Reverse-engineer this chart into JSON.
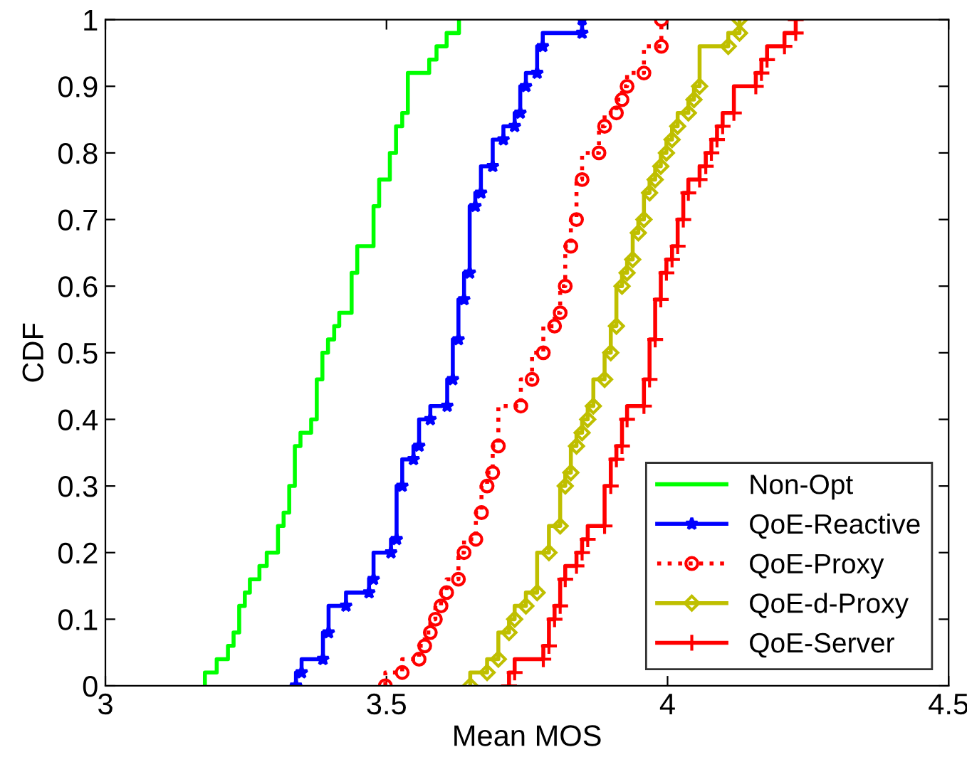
{
  "chart_data": {
    "type": "step",
    "xlabel": "Mean MOS",
    "ylabel": "CDF",
    "xlim": [
      3,
      4.5
    ],
    "ylim": [
      0,
      1
    ],
    "xticks": [
      3,
      3.5,
      4,
      4.5
    ],
    "yticks": [
      0,
      0.1,
      0.2,
      0.3,
      0.4,
      0.5,
      0.6,
      0.7,
      0.8,
      0.9,
      1
    ],
    "grid": false,
    "legend": "bottom right",
    "series": [
      {
        "name": "Non-Opt",
        "color": "#00ff00",
        "marker": "none",
        "line_style": "solid",
        "x": [
          3.177,
          3.198,
          3.218,
          3.228,
          3.238,
          3.248,
          3.257,
          3.274,
          3.287,
          3.307,
          3.317,
          3.327,
          3.337,
          3.347,
          3.366,
          3.376,
          3.386,
          3.396,
          3.407,
          3.416,
          3.438,
          3.448,
          3.477,
          3.487,
          3.506,
          3.517,
          3.528,
          3.538,
          3.576,
          3.589,
          3.607,
          3.629,
          3.629
        ],
        "values": [
          0,
          0.02,
          0.04,
          0.06,
          0.08,
          0.12,
          0.14,
          0.16,
          0.18,
          0.2,
          0.24,
          0.26,
          0.3,
          0.36,
          0.38,
          0.4,
          0.46,
          0.5,
          0.52,
          0.54,
          0.56,
          0.62,
          0.66,
          0.72,
          0.76,
          0.8,
          0.84,
          0.86,
          0.92,
          0.94,
          0.96,
          0.98,
          1
        ]
      },
      {
        "name": "QoE-Reactive",
        "color": "#0000ff",
        "marker": "star",
        "line_style": "solid",
        "x": [
          3.339,
          3.349,
          3.387,
          3.397,
          3.428,
          3.469,
          3.477,
          3.508,
          3.518,
          3.528,
          3.548,
          3.558,
          3.578,
          3.608,
          3.618,
          3.628,
          3.638,
          3.648,
          3.658,
          3.668,
          3.689,
          3.708,
          3.728,
          3.738,
          3.748,
          3.768,
          3.778,
          3.848,
          3.848
        ],
        "values": [
          0,
          0.02,
          0.04,
          0.08,
          0.12,
          0.14,
          0.16,
          0.2,
          0.22,
          0.3,
          0.34,
          0.36,
          0.4,
          0.42,
          0.46,
          0.52,
          0.58,
          0.62,
          0.72,
          0.74,
          0.78,
          0.82,
          0.84,
          0.86,
          0.9,
          0.92,
          0.96,
          0.98,
          1
        ]
      },
      {
        "name": "QoE-Proxy",
        "color": "#ff0000",
        "marker": "circle",
        "line_style": "dotted",
        "x": [
          3.498,
          3.528,
          3.558,
          3.568,
          3.578,
          3.587,
          3.597,
          3.607,
          3.628,
          3.638,
          3.659,
          3.669,
          3.679,
          3.689,
          3.699,
          3.739,
          3.759,
          3.779,
          3.799,
          3.809,
          3.818,
          3.828,
          3.838,
          3.848,
          3.878,
          3.888,
          3.909,
          3.919,
          3.928,
          3.958,
          3.989,
          3.989
        ],
        "values": [
          0,
          0.02,
          0.04,
          0.06,
          0.08,
          0.1,
          0.12,
          0.14,
          0.16,
          0.2,
          0.22,
          0.26,
          0.3,
          0.32,
          0.36,
          0.42,
          0.46,
          0.5,
          0.54,
          0.56,
          0.6,
          0.66,
          0.7,
          0.76,
          0.8,
          0.84,
          0.86,
          0.88,
          0.9,
          0.92,
          0.96,
          1
        ]
      },
      {
        "name": "QoE-d-Proxy",
        "color": "#bfbf00",
        "marker": "diamond",
        "line_style": "solid",
        "x": [
          3.649,
          3.679,
          3.699,
          3.718,
          3.728,
          3.748,
          3.768,
          3.789,
          3.809,
          3.818,
          3.828,
          3.838,
          3.848,
          3.858,
          3.868,
          3.888,
          3.899,
          3.909,
          3.919,
          3.928,
          3.938,
          3.948,
          3.958,
          3.968,
          3.978,
          3.988,
          3.998,
          4.008,
          4.018,
          4.037,
          4.047,
          4.057,
          4.108,
          4.128,
          4.128
        ],
        "values": [
          0,
          0.02,
          0.04,
          0.08,
          0.1,
          0.12,
          0.14,
          0.2,
          0.24,
          0.3,
          0.32,
          0.36,
          0.38,
          0.4,
          0.42,
          0.46,
          0.5,
          0.54,
          0.6,
          0.62,
          0.64,
          0.68,
          0.7,
          0.74,
          0.76,
          0.78,
          0.8,
          0.82,
          0.84,
          0.86,
          0.88,
          0.9,
          0.96,
          0.98,
          1
        ]
      },
      {
        "name": "QoE-Server",
        "color": "#ff0000",
        "marker": "cross",
        "line_style": "solid",
        "x": [
          3.718,
          3.728,
          3.779,
          3.789,
          3.799,
          3.809,
          3.818,
          3.838,
          3.848,
          3.858,
          3.888,
          3.899,
          3.909,
          3.919,
          3.928,
          3.958,
          3.968,
          3.978,
          3.988,
          3.998,
          4.008,
          4.018,
          4.028,
          4.037,
          4.057,
          4.068,
          4.078,
          4.088,
          4.098,
          4.118,
          4.157,
          4.167,
          4.177,
          4.208,
          4.228,
          4.228
        ],
        "values": [
          0,
          0.02,
          0.04,
          0.06,
          0.1,
          0.12,
          0.16,
          0.18,
          0.2,
          0.22,
          0.24,
          0.3,
          0.34,
          0.36,
          0.4,
          0.42,
          0.46,
          0.52,
          0.58,
          0.62,
          0.64,
          0.66,
          0.7,
          0.74,
          0.76,
          0.78,
          0.8,
          0.82,
          0.84,
          0.86,
          0.9,
          0.92,
          0.94,
          0.96,
          0.98,
          1
        ]
      }
    ]
  }
}
